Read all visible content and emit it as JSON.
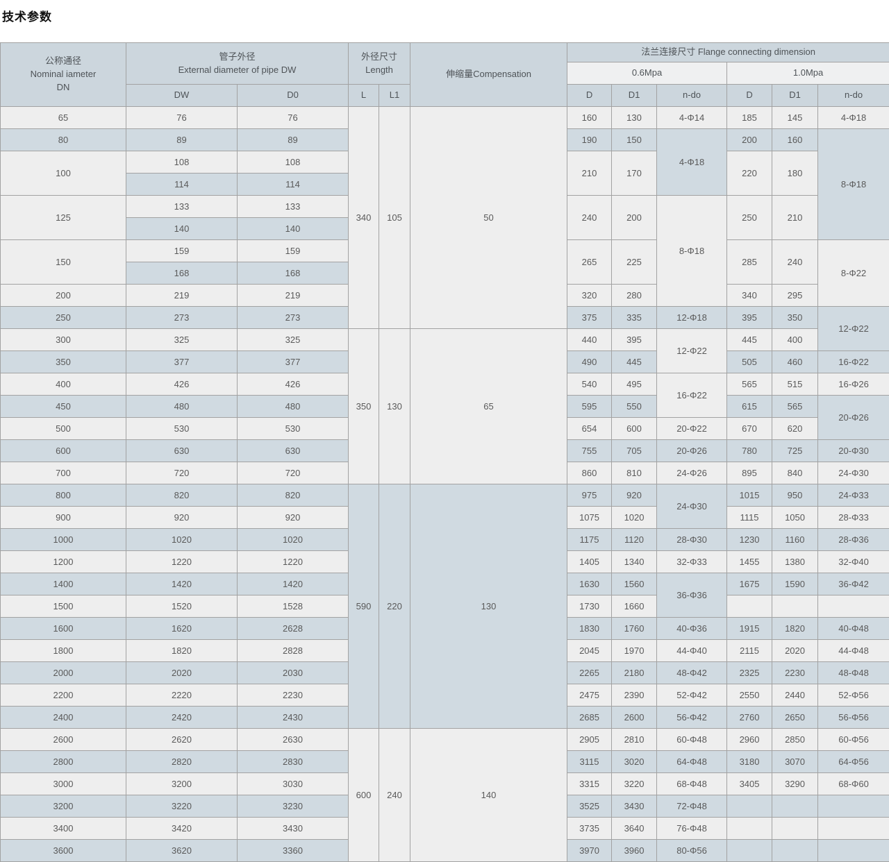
{
  "page": {
    "title": "技术参数"
  },
  "table": {
    "header": {
      "dn_zh": "公称通径",
      "dn_en": "Nominal iameter",
      "dn_code": "DN",
      "pipe_zh": "管子外径",
      "pipe_en": "External diameter of pipe DW",
      "pipe_sub": {
        "dw": "DW",
        "d0": "D0"
      },
      "length_zh": "外径尺寸",
      "length_en": "Length",
      "length_sub": {
        "l": "L",
        "l1": "L1"
      },
      "compensation": "伸缩量Compensation",
      "flange": "法兰连接尺寸 Flange connecting dimension",
      "pressure_06": "0.6Mpa",
      "pressure_10": "1.0Mpa",
      "flange_sub": {
        "d": "D",
        "d1": "D1",
        "ndo": "n-do"
      }
    },
    "columns": [
      "DN",
      "DW",
      "D0",
      "L",
      "L1",
      "Compensation",
      "0.6Mpa D",
      "0.6Mpa D1",
      "0.6Mpa n-do",
      "1.0Mpa D",
      "1.0Mpa D1",
      "1.0Mpa n-do"
    ],
    "rows": [
      [
        {
          "t": "65"
        },
        {
          "t": "76"
        },
        {
          "t": "76"
        },
        {
          "t": "340",
          "rs": 10
        },
        {
          "t": "105",
          "rs": 10
        },
        {
          "t": "50",
          "rs": 10
        },
        {
          "t": "160"
        },
        {
          "t": "130"
        },
        {
          "t": "4-Φ14"
        },
        {
          "t": "185"
        },
        {
          "t": "145"
        },
        {
          "t": "4-Φ18"
        }
      ],
      [
        {
          "t": "80"
        },
        {
          "t": "89"
        },
        {
          "t": "89"
        },
        {
          "t": "190"
        },
        {
          "t": "150"
        },
        {
          "t": "4-Φ18",
          "rs": 3
        },
        {
          "t": "200"
        },
        {
          "t": "160"
        },
        {
          "t": "8-Φ18",
          "rs": 5
        }
      ],
      [
        {
          "t": "100",
          "rs": 2
        },
        {
          "t": "108"
        },
        {
          "t": "108"
        },
        {
          "t": "210",
          "rs": 2
        },
        {
          "t": "170",
          "rs": 2
        },
        {
          "t": "220",
          "rs": 2
        },
        {
          "t": "180",
          "rs": 2
        }
      ],
      [
        {
          "t": "114"
        },
        {
          "t": "114"
        }
      ],
      [
        {
          "t": "125",
          "rs": 2
        },
        {
          "t": "133"
        },
        {
          "t": "133"
        },
        {
          "t": "240",
          "rs": 2
        },
        {
          "t": "200",
          "rs": 2
        },
        {
          "t": "8-Φ18",
          "rs": 5
        },
        {
          "t": "250",
          "rs": 2
        },
        {
          "t": "210",
          "rs": 2
        }
      ],
      [
        {
          "t": "140"
        },
        {
          "t": "140"
        }
      ],
      [
        {
          "t": "150",
          "rs": 2
        },
        {
          "t": "159"
        },
        {
          "t": "159"
        },
        {
          "t": "265",
          "rs": 2
        },
        {
          "t": "225",
          "rs": 2
        },
        {
          "t": "285",
          "rs": 2
        },
        {
          "t": "240",
          "rs": 2
        },
        {
          "t": "8-Φ22",
          "rs": 3
        }
      ],
      [
        {
          "t": "168"
        },
        {
          "t": "168"
        }
      ],
      [
        {
          "t": "200"
        },
        {
          "t": "219"
        },
        {
          "t": "219"
        },
        {
          "t": "320"
        },
        {
          "t": "280"
        },
        {
          "t": "340"
        },
        {
          "t": "295"
        }
      ],
      [
        {
          "t": "250"
        },
        {
          "t": "273"
        },
        {
          "t": "273"
        },
        {
          "t": "375"
        },
        {
          "t": "335"
        },
        {
          "t": "12-Φ18"
        },
        {
          "t": "395"
        },
        {
          "t": "350"
        },
        {
          "t": "12-Φ22",
          "rs": 2
        }
      ],
      [
        {
          "t": "300"
        },
        {
          "t": "325"
        },
        {
          "t": "325"
        },
        {
          "t": "350",
          "rs": 7
        },
        {
          "t": "130",
          "rs": 7
        },
        {
          "t": "65",
          "rs": 7
        },
        {
          "t": "440"
        },
        {
          "t": "395"
        },
        {
          "t": "12-Φ22",
          "rs": 2
        },
        {
          "t": "445"
        },
        {
          "t": "400"
        }
      ],
      [
        {
          "t": "350"
        },
        {
          "t": "377"
        },
        {
          "t": "377"
        },
        {
          "t": "490"
        },
        {
          "t": "445"
        },
        {
          "t": "505"
        },
        {
          "t": "460"
        },
        {
          "t": "16-Φ22"
        }
      ],
      [
        {
          "t": "400"
        },
        {
          "t": "426"
        },
        {
          "t": "426"
        },
        {
          "t": "540"
        },
        {
          "t": "495"
        },
        {
          "t": "16-Φ22",
          "rs": 2
        },
        {
          "t": "565"
        },
        {
          "t": "515"
        },
        {
          "t": "16-Φ26"
        }
      ],
      [
        {
          "t": "450"
        },
        {
          "t": "480"
        },
        {
          "t": "480"
        },
        {
          "t": "595"
        },
        {
          "t": "550"
        },
        {
          "t": "615"
        },
        {
          "t": "565"
        },
        {
          "t": "20-Φ26",
          "rs": 2
        }
      ],
      [
        {
          "t": "500"
        },
        {
          "t": "530"
        },
        {
          "t": "530"
        },
        {
          "t": "654"
        },
        {
          "t": "600"
        },
        {
          "t": "20-Φ22"
        },
        {
          "t": "670"
        },
        {
          "t": "620"
        }
      ],
      [
        {
          "t": "600"
        },
        {
          "t": "630"
        },
        {
          "t": "630"
        },
        {
          "t": "755"
        },
        {
          "t": "705"
        },
        {
          "t": "20-Φ26"
        },
        {
          "t": "780"
        },
        {
          "t": "725"
        },
        {
          "t": "20-Φ30"
        }
      ],
      [
        {
          "t": "700"
        },
        {
          "t": "720"
        },
        {
          "t": "720"
        },
        {
          "t": "860"
        },
        {
          "t": "810"
        },
        {
          "t": "24-Φ26"
        },
        {
          "t": "895"
        },
        {
          "t": "840"
        },
        {
          "t": "24-Φ30"
        }
      ],
      [
        {
          "t": "800"
        },
        {
          "t": "820"
        },
        {
          "t": "820"
        },
        {
          "t": "590",
          "rs": 11
        },
        {
          "t": "220",
          "rs": 11
        },
        {
          "t": "130",
          "rs": 11
        },
        {
          "t": "975"
        },
        {
          "t": "920"
        },
        {
          "t": "24-Φ30",
          "rs": 2
        },
        {
          "t": "1015"
        },
        {
          "t": "950"
        },
        {
          "t": "24-Φ33"
        }
      ],
      [
        {
          "t": "900"
        },
        {
          "t": "920"
        },
        {
          "t": "920"
        },
        {
          "t": "1075"
        },
        {
          "t": "1020"
        },
        {
          "t": "1115"
        },
        {
          "t": "1050"
        },
        {
          "t": "28-Φ33"
        }
      ],
      [
        {
          "t": "1000"
        },
        {
          "t": "1020"
        },
        {
          "t": "1020"
        },
        {
          "t": "1175"
        },
        {
          "t": "1120"
        },
        {
          "t": "28-Φ30"
        },
        {
          "t": "1230"
        },
        {
          "t": "1160"
        },
        {
          "t": "28-Φ36"
        }
      ],
      [
        {
          "t": "1200"
        },
        {
          "t": "1220"
        },
        {
          "t": "1220"
        },
        {
          "t": "1405"
        },
        {
          "t": "1340"
        },
        {
          "t": "32-Φ33"
        },
        {
          "t": "1455"
        },
        {
          "t": "1380"
        },
        {
          "t": "32-Φ40"
        }
      ],
      [
        {
          "t": "1400"
        },
        {
          "t": "1420"
        },
        {
          "t": "1420"
        },
        {
          "t": "1630"
        },
        {
          "t": "1560"
        },
        {
          "t": "36-Φ36",
          "rs": 2
        },
        {
          "t": "1675"
        },
        {
          "t": "1590"
        },
        {
          "t": "36-Φ42"
        }
      ],
      [
        {
          "t": "1500"
        },
        {
          "t": "1520"
        },
        {
          "t": "1528"
        },
        {
          "t": "1730"
        },
        {
          "t": "1660"
        },
        {
          "t": ""
        },
        {
          "t": ""
        },
        {
          "t": ""
        }
      ],
      [
        {
          "t": "1600"
        },
        {
          "t": "1620"
        },
        {
          "t": "2628"
        },
        {
          "t": "1830"
        },
        {
          "t": "1760"
        },
        {
          "t": "40-Φ36"
        },
        {
          "t": "1915"
        },
        {
          "t": "1820"
        },
        {
          "t": "40-Φ48"
        }
      ],
      [
        {
          "t": "1800"
        },
        {
          "t": "1820"
        },
        {
          "t": "2828"
        },
        {
          "t": "2045"
        },
        {
          "t": "1970"
        },
        {
          "t": "44-Φ40"
        },
        {
          "t": "2115"
        },
        {
          "t": "2020"
        },
        {
          "t": "44-Φ48"
        }
      ],
      [
        {
          "t": "2000"
        },
        {
          "t": "2020"
        },
        {
          "t": "2030"
        },
        {
          "t": "2265"
        },
        {
          "t": "2180"
        },
        {
          "t": "48-Φ42"
        },
        {
          "t": "2325"
        },
        {
          "t": "2230"
        },
        {
          "t": "48-Φ48"
        }
      ],
      [
        {
          "t": "2200"
        },
        {
          "t": "2220"
        },
        {
          "t": "2230"
        },
        {
          "t": "2475"
        },
        {
          "t": "2390"
        },
        {
          "t": "52-Φ42"
        },
        {
          "t": "2550"
        },
        {
          "t": "2440"
        },
        {
          "t": "52-Φ56"
        }
      ],
      [
        {
          "t": "2400"
        },
        {
          "t": "2420"
        },
        {
          "t": "2430"
        },
        {
          "t": "2685"
        },
        {
          "t": "2600"
        },
        {
          "t": "56-Φ42"
        },
        {
          "t": "2760"
        },
        {
          "t": "2650"
        },
        {
          "t": "56-Φ56"
        }
      ],
      [
        {
          "t": "2600"
        },
        {
          "t": "2620"
        },
        {
          "t": "2630"
        },
        {
          "t": "600",
          "rs": 6
        },
        {
          "t": "240",
          "rs": 6
        },
        {
          "t": "140",
          "rs": 6
        },
        {
          "t": "2905"
        },
        {
          "t": "2810"
        },
        {
          "t": "60-Φ48"
        },
        {
          "t": "2960"
        },
        {
          "t": "2850"
        },
        {
          "t": "60-Φ56"
        }
      ],
      [
        {
          "t": "2800"
        },
        {
          "t": "2820"
        },
        {
          "t": "2830"
        },
        {
          "t": "3115"
        },
        {
          "t": "3020"
        },
        {
          "t": "64-Φ48"
        },
        {
          "t": "3180"
        },
        {
          "t": "3070"
        },
        {
          "t": "64-Φ56"
        }
      ],
      [
        {
          "t": "3000"
        },
        {
          "t": "3200"
        },
        {
          "t": "3030"
        },
        {
          "t": "3315"
        },
        {
          "t": "3220"
        },
        {
          "t": "68-Φ48"
        },
        {
          "t": "3405"
        },
        {
          "t": "3290"
        },
        {
          "t": "68-Φ60"
        }
      ],
      [
        {
          "t": "3200"
        },
        {
          "t": "3220"
        },
        {
          "t": "3230"
        },
        {
          "t": "3525"
        },
        {
          "t": "3430"
        },
        {
          "t": "72-Φ48"
        },
        {
          "t": ""
        },
        {
          "t": ""
        },
        {
          "t": ""
        }
      ],
      [
        {
          "t": "3400"
        },
        {
          "t": "3420"
        },
        {
          "t": "3430"
        },
        {
          "t": "3735"
        },
        {
          "t": "3640"
        },
        {
          "t": "76-Φ48"
        },
        {
          "t": ""
        },
        {
          "t": ""
        },
        {
          "t": ""
        }
      ],
      [
        {
          "t": "3600"
        },
        {
          "t": "3620"
        },
        {
          "t": "3360"
        },
        {
          "t": "3970"
        },
        {
          "t": "3960"
        },
        {
          "t": "80-Φ56"
        },
        {
          "t": ""
        },
        {
          "t": ""
        },
        {
          "t": ""
        }
      ]
    ]
  },
  "colors": {
    "header_bg": "#ccd6dd",
    "pressure_row_bg": "#eff0f1",
    "row_white": "#eeeeee",
    "row_blue": "#d0dae1",
    "border": "#a2a2a2",
    "text": "#5a5a5a",
    "title_text": "#111111"
  }
}
